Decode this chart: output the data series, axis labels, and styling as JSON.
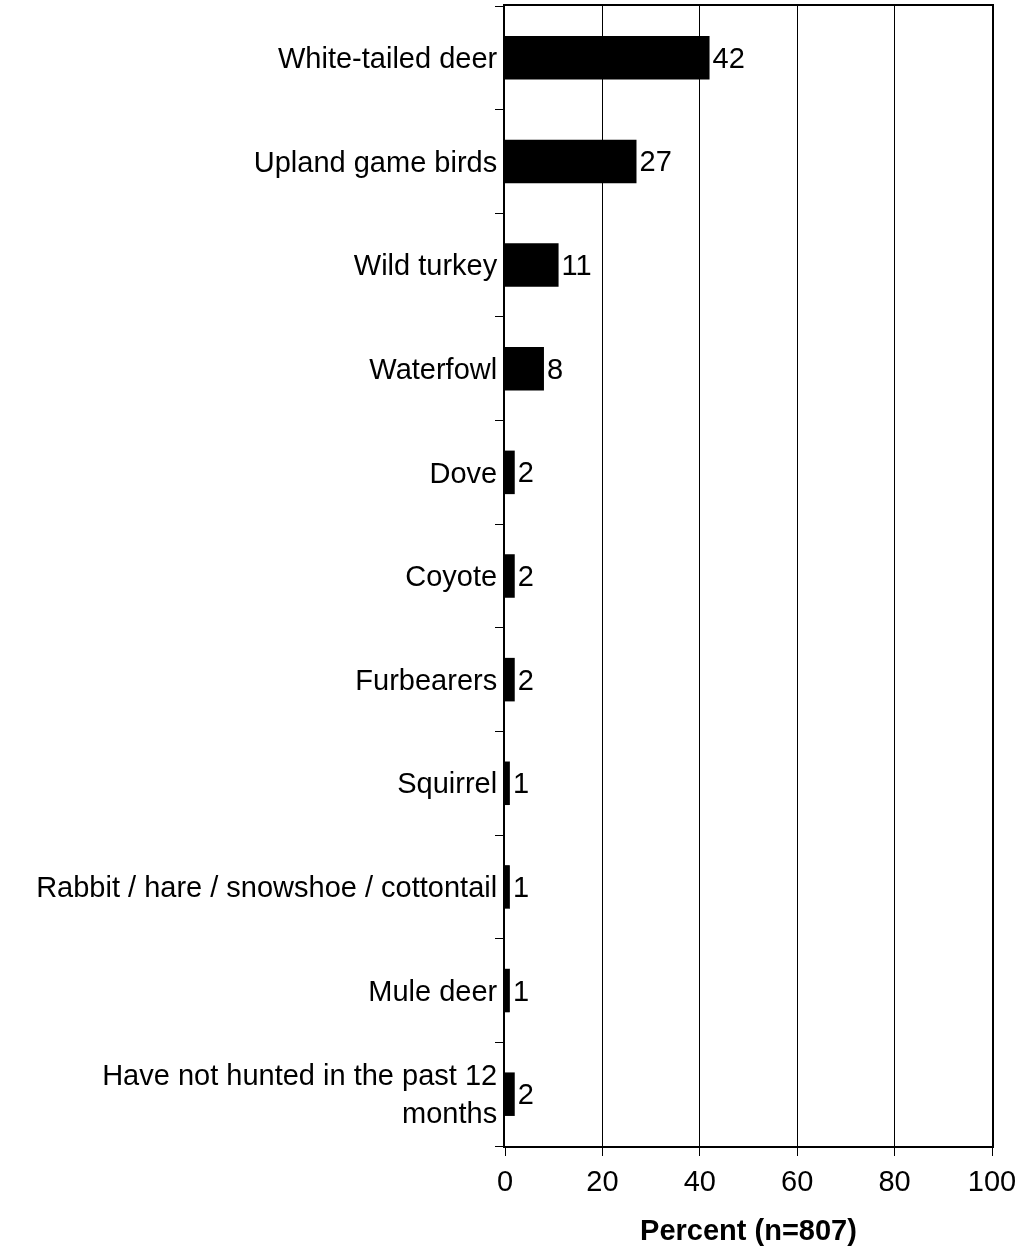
{
  "chart_data": {
    "type": "bar",
    "orientation": "horizontal",
    "categories": [
      "White-tailed deer",
      "Upland game birds",
      "Wild turkey",
      "Waterfowl",
      "Dove",
      "Coyote",
      "Furbearers",
      "Squirrel",
      "Rabbit / hare / snowshoe / cottontail",
      "Mule deer",
      "Have not hunted in the past 12 months"
    ],
    "values": [
      42,
      27,
      11,
      8,
      2,
      2,
      2,
      1,
      1,
      1,
      2
    ],
    "color": "#000000",
    "xlabel": "Percent (n=807)",
    "xlim": [
      0,
      100
    ],
    "xticks": [
      0,
      20,
      40,
      60,
      80,
      100
    ],
    "grid": "x",
    "data_labels": true
  }
}
